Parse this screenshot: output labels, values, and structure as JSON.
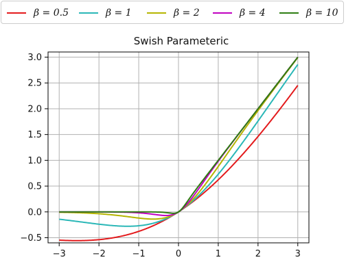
{
  "chart_data": {
    "type": "line",
    "title": "Swish Parameteric",
    "xlabel": "",
    "ylabel": "",
    "xlim": [
      -3,
      3
    ],
    "ylim": [
      -0.6,
      3.1
    ],
    "xticks": [
      -3,
      -2,
      -1,
      0,
      1,
      2,
      3
    ],
    "xtick_labels": [
      "−3",
      "−2",
      "−1",
      "0",
      "1",
      "2",
      "3"
    ],
    "yticks": [
      -0.5,
      0.0,
      0.5,
      1.0,
      1.5,
      2.0,
      2.5,
      3.0
    ],
    "ytick_labels": [
      "−0.5",
      "0.0",
      "0.5",
      "1.0",
      "1.5",
      "2.0",
      "2.5",
      "3.0"
    ],
    "grid": true,
    "legend_position": "top",
    "function": "x * sigmoid(beta * x)",
    "series": [
      {
        "name": "β = 0.5",
        "beta": 0.5,
        "color": "#e31a1c",
        "x": [
          -3,
          -2.5,
          -2,
          -1.5,
          -1,
          -0.5,
          0,
          0.5,
          1,
          1.5,
          2,
          2.5,
          3
        ],
        "values": [
          -0.546,
          -0.557,
          -0.538,
          -0.481,
          -0.378,
          -0.219,
          0,
          0.281,
          0.622,
          1.019,
          1.462,
          1.943,
          2.454
        ]
      },
      {
        "name": "β = 1",
        "beta": 1,
        "color": "#2ab7b7",
        "x": [
          -3,
          -2.5,
          -2,
          -1.5,
          -1,
          -0.5,
          0,
          0.5,
          1,
          1.5,
          2,
          2.5,
          3
        ],
        "values": [
          -0.142,
          -0.189,
          -0.238,
          -0.273,
          -0.269,
          -0.189,
          0,
          0.311,
          0.731,
          1.227,
          1.762,
          2.311,
          2.858
        ]
      },
      {
        "name": "β = 2",
        "beta": 2,
        "color": "#b5b500",
        "x": [
          -3,
          -2.5,
          -2,
          -1.5,
          -1,
          -0.5,
          0,
          0.5,
          1,
          1.5,
          2,
          2.5,
          3
        ],
        "values": [
          -0.007,
          -0.017,
          -0.036,
          -0.071,
          -0.119,
          -0.134,
          0,
          0.366,
          0.881,
          1.429,
          1.964,
          2.483,
          2.993
        ]
      },
      {
        "name": "β = 4",
        "beta": 4,
        "color": "#c000c0",
        "x": [
          -3,
          -2.5,
          -2,
          -1.5,
          -1,
          -0.5,
          0,
          0.5,
          1,
          1.5,
          2,
          2.5,
          3
        ],
        "values": [
          0.0,
          0.0,
          -0.001,
          -0.004,
          -0.018,
          -0.06,
          0,
          0.44,
          0.982,
          1.496,
          1.999,
          2.5,
          3.0
        ]
      },
      {
        "name": "β = 10",
        "beta": 10,
        "color": "#2e7d12",
        "x": [
          -3,
          -2.5,
          -2,
          -1.5,
          -1,
          -0.5,
          0,
          0.5,
          1,
          1.5,
          2,
          2.5,
          3
        ],
        "values": [
          0.0,
          0.0,
          0.0,
          0.0,
          0.0,
          -0.003,
          0,
          0.497,
          1.0,
          1.5,
          2.0,
          2.5,
          3.0
        ]
      }
    ]
  }
}
